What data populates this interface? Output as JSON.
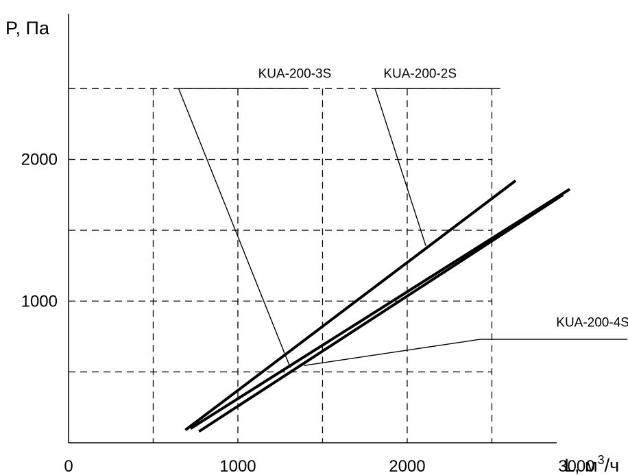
{
  "chart_data": {
    "type": "line",
    "title": "",
    "ylabel": "P, Па",
    "xlabel_main": "L, м",
    "xlabel_sup": "3",
    "xlabel_tail": "/ч",
    "xlim": [
      0,
      3300
    ],
    "ylim": [
      0,
      2500
    ],
    "grid": true,
    "x_grid": [
      500,
      1000,
      1500,
      2000,
      2500
    ],
    "y_grid": [
      500,
      1000,
      1500,
      2000,
      2500
    ],
    "x_ticks": [
      {
        "value": 0,
        "label": "0"
      },
      {
        "value": 1000,
        "label": "1000"
      },
      {
        "value": 2000,
        "label": "2000"
      },
      {
        "value": 3000,
        "label": "3000"
      }
    ],
    "y_ticks": [
      {
        "value": 1000,
        "label": "1000"
      },
      {
        "value": 2000,
        "label": "2000"
      }
    ],
    "series": [
      {
        "name": "KUA-200-2S",
        "color": "#000000",
        "x": [
          690,
          2640
        ],
        "y": [
          90,
          1850
        ]
      },
      {
        "name": "KUA-200-3S",
        "color": "#000000",
        "x": [
          770,
          2920
        ],
        "y": [
          80,
          1750
        ]
      },
      {
        "name": "KUA-200-4S",
        "color": "#000000",
        "x": [
          720,
          2960
        ],
        "y": [
          100,
          1790
        ]
      }
    ],
    "annotations": [
      {
        "label": "KUA-200-3S",
        "text_at": [
          1120,
          2575
        ],
        "shelf": [
          [
            650,
            2500
          ],
          [
            1400,
            2500
          ]
        ],
        "leader": [
          [
            650,
            2500
          ],
          [
            1310,
            530
          ]
        ]
      },
      {
        "label": "KUA-200-2S",
        "text_at": [
          1860,
          2575
        ],
        "shelf": [
          [
            1810,
            2500
          ],
          [
            2550,
            2500
          ]
        ],
        "leader": [
          [
            1810,
            2500
          ],
          [
            2110,
            1390
          ]
        ]
      },
      {
        "label": "KUA-200-4S",
        "text_at": [
          2880,
          820
        ],
        "shelf": [
          [
            2430,
            730
          ],
          [
            3300,
            730
          ]
        ],
        "leader": [
          [
            2430,
            730
          ],
          [
            1390,
            545
          ]
        ]
      }
    ]
  }
}
